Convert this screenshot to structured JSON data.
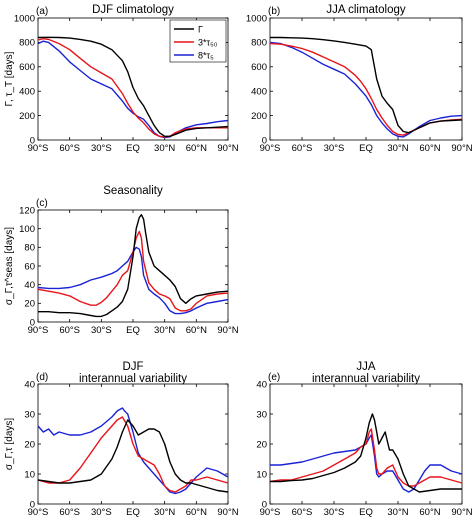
{
  "colors": {
    "gamma": "#000000",
    "tau50": "#e8141a",
    "tau5": "#1a23d6"
  },
  "chart_data": [
    {
      "type": "line",
      "panel_label": "(a)",
      "title": "DJF climatology",
      "title_line2": "",
      "ylabel": "Γ, τ_T [days]",
      "xlim": [
        -90,
        90
      ],
      "ylim": [
        0,
        1000
      ],
      "xticks": [
        -90,
        -60,
        -30,
        0,
        30,
        60,
        90
      ],
      "xtick_labels": [
        "90°S",
        "60°S",
        "30°S",
        "EQ",
        "30°N",
        "60°N",
        "90°N"
      ],
      "yticks": [
        0,
        200,
        400,
        600,
        800,
        1000
      ],
      "ytick_labels": [
        "0",
        "200",
        "400",
        "600",
        "800",
        "1000"
      ],
      "legend": {
        "position": "top-right",
        "entries": [
          {
            "label": "Γ",
            "key": "gamma"
          },
          {
            "label": "3*τ₅₀",
            "key": "tau50"
          },
          {
            "label": "8*τ₅",
            "key": "tau5"
          }
        ]
      },
      "series": [
        {
          "key": "gamma",
          "x": [
            -90,
            -80,
            -70,
            -60,
            -50,
            -40,
            -30,
            -20,
            -10,
            -5,
            0,
            5,
            10,
            15,
            20,
            25,
            30,
            35,
            40,
            50,
            60,
            70,
            80,
            90
          ],
          "values": [
            840,
            842,
            840,
            835,
            825,
            810,
            785,
            740,
            650,
            560,
            430,
            340,
            280,
            200,
            120,
            60,
            30,
            30,
            45,
            80,
            95,
            100,
            105,
            110
          ]
        },
        {
          "key": "tau50",
          "x": [
            -90,
            -85,
            -80,
            -70,
            -60,
            -50,
            -40,
            -30,
            -20,
            -10,
            -5,
            0,
            5,
            10,
            15,
            20,
            25,
            30,
            35,
            40,
            50,
            60,
            70,
            80,
            90
          ],
          "values": [
            820,
            830,
            825,
            790,
            740,
            670,
            600,
            550,
            500,
            380,
            300,
            230,
            180,
            140,
            90,
            50,
            30,
            25,
            30,
            60,
            90,
            100,
            100,
            100,
            100
          ]
        },
        {
          "key": "tau5",
          "x": [
            -90,
            -85,
            -80,
            -70,
            -60,
            -50,
            -40,
            -30,
            -20,
            -10,
            -5,
            0,
            5,
            10,
            15,
            20,
            25,
            30,
            35,
            40,
            50,
            60,
            70,
            80,
            90
          ],
          "values": [
            790,
            810,
            800,
            730,
            640,
            570,
            500,
            460,
            420,
            320,
            260,
            220,
            190,
            170,
            120,
            60,
            30,
            20,
            25,
            55,
            100,
            125,
            135,
            150,
            160
          ]
        }
      ]
    },
    {
      "type": "line",
      "panel_label": "(b)",
      "title": "JJA climatology",
      "title_line2": "",
      "ylabel": "",
      "xlim": [
        -90,
        90
      ],
      "ylim": [
        0,
        1000
      ],
      "xticks": [
        -90,
        -60,
        -30,
        0,
        30,
        60,
        90
      ],
      "xtick_labels": [
        "90°S",
        "60°S",
        "30°S",
        "EQ",
        "30°N",
        "60°N",
        "90°N"
      ],
      "yticks": [
        0,
        200,
        400,
        600,
        800,
        1000
      ],
      "ytick_labels": [
        "0",
        "200",
        "400",
        "600",
        "800",
        "1000"
      ],
      "series": [
        {
          "key": "gamma",
          "x": [
            -90,
            -80,
            -70,
            -60,
            -50,
            -40,
            -30,
            -20,
            -10,
            0,
            5,
            10,
            15,
            20,
            25,
            30,
            35,
            40,
            50,
            60,
            70,
            80,
            90
          ],
          "values": [
            840,
            840,
            838,
            835,
            830,
            822,
            812,
            800,
            785,
            770,
            740,
            500,
            360,
            300,
            250,
            120,
            70,
            60,
            100,
            140,
            155,
            160,
            165
          ]
        },
        {
          "key": "tau50",
          "x": [
            -90,
            -80,
            -70,
            -60,
            -50,
            -40,
            -30,
            -20,
            -10,
            -5,
            0,
            5,
            10,
            15,
            20,
            25,
            30,
            35,
            40,
            50,
            60,
            70,
            80,
            90
          ],
          "values": [
            790,
            785,
            770,
            750,
            720,
            680,
            640,
            600,
            530,
            480,
            420,
            340,
            250,
            180,
            120,
            70,
            45,
            40,
            60,
            100,
            140,
            155,
            165,
            170
          ]
        },
        {
          "key": "tau5",
          "x": [
            -90,
            -80,
            -70,
            -60,
            -50,
            -40,
            -30,
            -20,
            -10,
            -5,
            0,
            5,
            10,
            15,
            20,
            25,
            30,
            35,
            40,
            50,
            60,
            70,
            80,
            90
          ],
          "values": [
            800,
            790,
            760,
            720,
            670,
            620,
            580,
            540,
            460,
            410,
            360,
            290,
            200,
            140,
            90,
            50,
            30,
            25,
            50,
            110,
            160,
            180,
            195,
            200
          ]
        }
      ]
    },
    {
      "type": "line",
      "panel_label": "(c)",
      "title": "Seasonality",
      "title_line2": "",
      "ylabel": "σ_Γ,τ^seas [days]",
      "xlim": [
        -90,
        90
      ],
      "ylim": [
        0,
        120
      ],
      "xticks": [
        -90,
        -60,
        -30,
        0,
        30,
        60,
        90
      ],
      "xtick_labels": [
        "90°S",
        "60°S",
        "30°S",
        "EQ",
        "30°N",
        "60°N",
        "90°N"
      ],
      "yticks": [
        0,
        20,
        40,
        60,
        80,
        100,
        120
      ],
      "ytick_labels": [
        "0",
        "20",
        "40",
        "60",
        "80",
        "100",
        "120"
      ],
      "series": [
        {
          "key": "gamma",
          "x": [
            -90,
            -80,
            -70,
            -60,
            -50,
            -40,
            -35,
            -30,
            -25,
            -20,
            -15,
            -10,
            -5,
            0,
            3,
            6,
            8,
            10,
            12,
            15,
            20,
            25,
            30,
            35,
            40,
            45,
            50,
            55,
            60,
            70,
            80,
            90
          ],
          "values": [
            11,
            11,
            10,
            10,
            9,
            7,
            6,
            6,
            8,
            12,
            16,
            22,
            35,
            70,
            100,
            112,
            115,
            110,
            95,
            75,
            60,
            55,
            50,
            45,
            38,
            25,
            20,
            25,
            28,
            30,
            32,
            33
          ]
        },
        {
          "key": "tau50",
          "x": [
            -90,
            -80,
            -70,
            -60,
            -50,
            -40,
            -35,
            -30,
            -25,
            -20,
            -15,
            -10,
            -5,
            0,
            3,
            6,
            8,
            10,
            15,
            20,
            25,
            30,
            35,
            40,
            45,
            50,
            55,
            60,
            70,
            80,
            90
          ],
          "values": [
            35,
            33,
            31,
            28,
            22,
            18,
            18,
            21,
            26,
            33,
            40,
            50,
            55,
            75,
            90,
            97,
            90,
            65,
            42,
            35,
            30,
            28,
            25,
            15,
            12,
            12,
            14,
            20,
            28,
            30,
            31
          ]
        },
        {
          "key": "tau5",
          "x": [
            -90,
            -80,
            -70,
            -60,
            -50,
            -40,
            -30,
            -25,
            -20,
            -15,
            -10,
            -5,
            0,
            3,
            6,
            8,
            10,
            15,
            20,
            25,
            30,
            35,
            40,
            45,
            50,
            55,
            60,
            70,
            80,
            90
          ],
          "values": [
            37,
            36,
            36,
            37,
            40,
            45,
            48,
            50,
            52,
            55,
            60,
            65,
            75,
            80,
            78,
            70,
            50,
            35,
            30,
            26,
            20,
            12,
            9,
            9,
            10,
            12,
            15,
            20,
            22,
            24
          ]
        }
      ]
    },
    {
      "type": "line",
      "panel_label": "(d)",
      "title": "DJF",
      "title_line2": "interannual variability",
      "ylabel": "σ_Γ,τ [days]",
      "xlim": [
        -90,
        90
      ],
      "ylim": [
        0,
        40
      ],
      "xticks": [
        -90,
        -60,
        -30,
        0,
        30,
        60,
        90
      ],
      "xtick_labels": [
        "90°S",
        "60°S",
        "30°S",
        "EQ",
        "30°N",
        "60°N",
        "90°N"
      ],
      "yticks": [
        0,
        10,
        20,
        30,
        40
      ],
      "ytick_labels": [
        "0",
        "10",
        "20",
        "30",
        "40"
      ],
      "series": [
        {
          "key": "gamma",
          "x": [
            -90,
            -80,
            -70,
            -60,
            -50,
            -40,
            -30,
            -20,
            -15,
            -10,
            -5,
            0,
            5,
            10,
            15,
            20,
            25,
            30,
            35,
            40,
            45,
            50,
            55,
            60,
            70,
            80,
            90
          ],
          "values": [
            8,
            7.5,
            7,
            7,
            7.5,
            8,
            10,
            15,
            19,
            24,
            28,
            26,
            23,
            24,
            25,
            25,
            24,
            20,
            14,
            10,
            8,
            7,
            7,
            6.5,
            5.5,
            4.5,
            4
          ]
        },
        {
          "key": "tau50",
          "x": [
            -90,
            -80,
            -70,
            -60,
            -50,
            -40,
            -30,
            -20,
            -15,
            -10,
            -5,
            0,
            5,
            10,
            15,
            20,
            25,
            30,
            35,
            40,
            45,
            50,
            55,
            60,
            70,
            80,
            90
          ],
          "values": [
            8,
            7,
            7,
            8,
            12,
            17,
            22,
            26,
            28,
            29,
            26,
            20,
            16,
            15,
            14,
            13,
            10,
            6,
            4.5,
            4,
            5,
            6,
            8,
            8,
            9,
            8,
            7
          ]
        },
        {
          "key": "tau5",
          "x": [
            -90,
            -85,
            -80,
            -75,
            -70,
            -60,
            -50,
            -40,
            -30,
            -20,
            -15,
            -10,
            -8,
            -5,
            0,
            5,
            10,
            15,
            20,
            25,
            30,
            35,
            40,
            45,
            50,
            55,
            60,
            70,
            80,
            90
          ],
          "values": [
            26,
            24,
            25,
            23,
            24,
            23,
            23,
            24,
            26,
            29,
            31,
            32,
            31,
            30,
            24,
            17,
            14,
            12,
            10,
            8,
            6,
            4,
            3.5,
            4,
            5,
            7,
            9,
            12,
            11,
            9
          ]
        }
      ]
    },
    {
      "type": "line",
      "panel_label": "(e)",
      "title": "JJA",
      "title_line2": "interannual variability",
      "ylabel": "",
      "xlim": [
        -90,
        90
      ],
      "ylim": [
        0,
        40
      ],
      "xticks": [
        -90,
        -60,
        -30,
        0,
        30,
        60,
        90
      ],
      "xtick_labels": [
        "90°S",
        "60°S",
        "30°S",
        "EQ",
        "30°N",
        "60°N",
        "90°N"
      ],
      "yticks": [
        0,
        10,
        20,
        30,
        40
      ],
      "ytick_labels": [
        "0",
        "10",
        "20",
        "30",
        "40"
      ],
      "series": [
        {
          "key": "gamma",
          "x": [
            -90,
            -80,
            -70,
            -60,
            -50,
            -40,
            -30,
            -20,
            -10,
            -5,
            0,
            3,
            6,
            8,
            10,
            12,
            15,
            18,
            20,
            22,
            25,
            30,
            35,
            40,
            45,
            50,
            60,
            70,
            80,
            90
          ],
          "values": [
            7.5,
            7.5,
            7.8,
            8,
            8.5,
            9.5,
            10.5,
            12,
            14,
            16,
            22,
            27,
            30,
            28,
            24,
            20,
            22,
            24,
            21,
            18,
            18,
            15,
            10,
            6,
            5,
            4,
            4.5,
            5,
            5,
            5
          ]
        },
        {
          "key": "tau50",
          "x": [
            -90,
            -80,
            -70,
            -60,
            -50,
            -40,
            -30,
            -20,
            -10,
            -5,
            0,
            3,
            5,
            8,
            10,
            12,
            15,
            20,
            25,
            30,
            35,
            40,
            45,
            50,
            60,
            70,
            80,
            90
          ],
          "values": [
            7.5,
            8,
            8,
            9,
            10,
            11,
            13,
            15,
            17,
            19,
            20,
            24,
            25,
            18,
            12,
            10,
            10,
            12,
            13,
            9,
            7,
            6,
            6,
            7,
            9,
            9,
            8,
            7
          ]
        },
        {
          "key": "tau5",
          "x": [
            -90,
            -80,
            -70,
            -60,
            -50,
            -40,
            -30,
            -20,
            -10,
            -5,
            0,
            3,
            5,
            8,
            10,
            12,
            15,
            20,
            25,
            30,
            35,
            40,
            45,
            50,
            55,
            60,
            70,
            80,
            90
          ],
          "values": [
            13,
            13,
            13.5,
            14,
            15,
            16,
            17,
            17.5,
            18,
            19,
            20,
            22,
            23,
            16,
            10,
            9,
            10,
            11,
            11,
            8,
            5,
            4,
            5,
            8,
            11,
            13,
            13,
            11,
            10
          ]
        }
      ]
    }
  ]
}
